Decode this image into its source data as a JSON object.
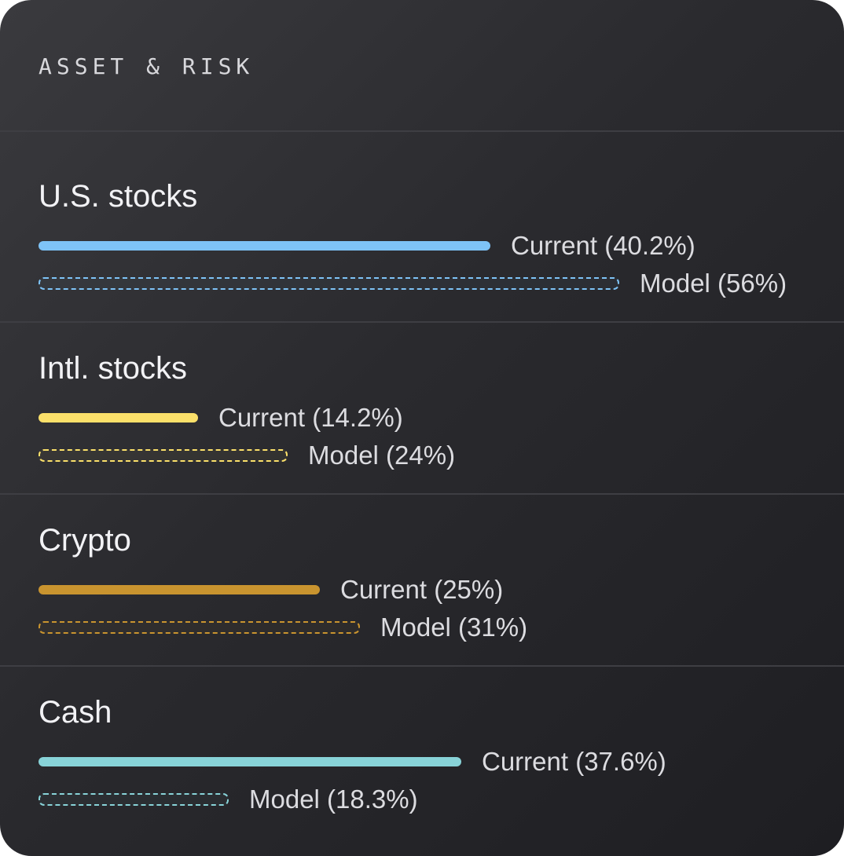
{
  "header": {
    "title": "ASSET & RISK"
  },
  "chart_data": {
    "type": "bar",
    "categories": [
      "U.S. stocks",
      "Intl. stocks",
      "Crypto",
      "Cash"
    ],
    "series": [
      {
        "name": "Current",
        "values": [
          40.2,
          14.2,
          25,
          37.6
        ]
      },
      {
        "name": "Model",
        "values": [
          56,
          24,
          31,
          18.3
        ]
      }
    ],
    "rows": [
      {
        "title": "U.S. stocks",
        "color": "#7ec3f7",
        "current": 40.2,
        "model": 56,
        "current_label": "Current (40.2%)",
        "model_label": "Model (56%)"
      },
      {
        "title": "Intl. stocks",
        "color": "#fbe06a",
        "current": 14.2,
        "model": 24,
        "current_label": "Current (14.2%)",
        "model_label": "Model (24%)"
      },
      {
        "title": "Crypto",
        "color": "#c9942f",
        "current": 25,
        "model": 31,
        "current_label": "Current (25%)",
        "model_label": "Model (31%)"
      },
      {
        "title": "Cash",
        "color": "#88d3d8",
        "current": 37.6,
        "model": 18.3,
        "current_label": "Current (37.6%)",
        "model_label": "Model (18.3%)"
      }
    ]
  }
}
